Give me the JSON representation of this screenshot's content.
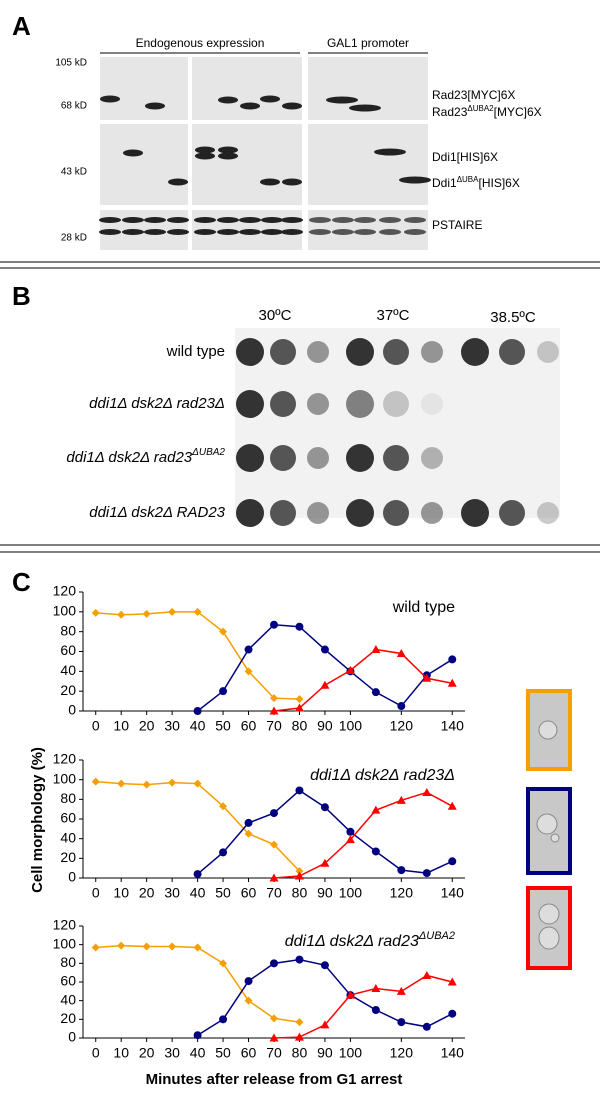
{
  "panel_a": {
    "label": "A",
    "headers": [
      "Endogenous expression",
      "GAL1 promoter"
    ],
    "markers": [
      "105 kD",
      "68 kD",
      "43 kD",
      "28 kD"
    ],
    "bands": [
      {
        "base": "Rad23[MYC]6X"
      },
      {
        "base": "Rad23",
        "sup": "ΔUBA2",
        "rest": "[MYC]6X"
      },
      {
        "base": "Ddi1[HIS]6X"
      },
      {
        "base": "Ddi1",
        "sup": "ΔUBA",
        "rest": "[HIS]6X"
      },
      {
        "base": "PSTAIRE"
      }
    ]
  },
  "panel_b": {
    "label": "B",
    "temperatures": [
      "30ºC",
      "37ºC",
      "38.5ºC"
    ],
    "strains": [
      {
        "base": "wild type"
      },
      {
        "base": "ddi1Δ dsk2Δ rad23Δ"
      },
      {
        "base": "ddi1Δ dsk2Δ rad23",
        "sup": "ΔUBA2"
      },
      {
        "base": "ddi1Δ dsk2Δ RAD23"
      }
    ]
  },
  "panel_c": {
    "label": "C"
  },
  "chart_data": [
    {
      "type": "line",
      "annotation": {
        "text": "wild type"
      },
      "x": [
        0,
        10,
        20,
        30,
        40,
        50,
        60,
        70,
        80,
        90,
        100,
        110,
        120,
        130,
        140
      ],
      "series": [
        {
          "color": "#f5a000",
          "marker": "diamond",
          "values": [
            99,
            97,
            98,
            100,
            100,
            80,
            40,
            13,
            12,
            null,
            null,
            null,
            null,
            null,
            null
          ]
        },
        {
          "color": "#000080",
          "marker": "circle",
          "values": [
            null,
            null,
            null,
            null,
            0,
            20,
            62,
            87,
            85,
            62,
            40,
            19,
            5,
            36,
            52
          ]
        },
        {
          "color": "#ff0000",
          "marker": "triangle",
          "values": [
            null,
            null,
            null,
            null,
            null,
            null,
            null,
            0,
            3,
            26,
            41,
            62,
            58,
            33,
            28
          ]
        }
      ],
      "xlim": [
        -5,
        145
      ],
      "xticks": [
        0,
        10,
        20,
        30,
        40,
        50,
        60,
        70,
        80,
        90,
        100,
        120,
        140
      ],
      "ylim": [
        0,
        120
      ],
      "yticks": [
        0,
        20,
        40,
        60,
        80,
        100,
        120
      ]
    },
    {
      "type": "line",
      "annotation": {
        "text": "ddi1Δ dsk2Δ rad23Δ"
      },
      "ylabel": "Cell morphology (%)",
      "x": [
        0,
        10,
        20,
        30,
        40,
        50,
        60,
        70,
        80,
        90,
        100,
        110,
        120,
        130,
        140
      ],
      "series": [
        {
          "color": "#f5a000",
          "marker": "diamond",
          "values": [
            98,
            96,
            95,
            97,
            96,
            73,
            45,
            34,
            7,
            null,
            null,
            null,
            null,
            null,
            null
          ]
        },
        {
          "color": "#000080",
          "marker": "circle",
          "values": [
            null,
            null,
            null,
            null,
            4,
            26,
            56,
            66,
            89,
            72,
            47,
            27,
            8,
            5,
            17
          ]
        },
        {
          "color": "#ff0000",
          "marker": "triangle",
          "values": [
            null,
            null,
            null,
            null,
            null,
            null,
            null,
            0,
            2,
            15,
            39,
            69,
            79,
            87,
            73
          ]
        }
      ],
      "xlim": [
        -5,
        145
      ],
      "xticks": [
        0,
        10,
        20,
        30,
        40,
        50,
        60,
        70,
        80,
        90,
        100,
        120,
        140
      ],
      "ylim": [
        0,
        120
      ],
      "yticks": [
        0,
        20,
        40,
        60,
        80,
        100,
        120
      ]
    },
    {
      "type": "line",
      "annotation": {
        "text": "ddi1Δ dsk2Δ rad23",
        "sup": "ΔUBA2"
      },
      "xlabel": "Minutes after release from G1 arrest",
      "x": [
        0,
        10,
        20,
        30,
        40,
        50,
        60,
        70,
        80,
        90,
        100,
        110,
        120,
        130,
        140
      ],
      "series": [
        {
          "color": "#f5a000",
          "marker": "diamond",
          "values": [
            97,
            99,
            98,
            98,
            97,
            80,
            40,
            21,
            17,
            null,
            null,
            null,
            null,
            null,
            null
          ]
        },
        {
          "color": "#000080",
          "marker": "circle",
          "values": [
            null,
            null,
            null,
            null,
            3,
            20,
            61,
            80,
            84,
            78,
            46,
            30,
            17,
            12,
            26
          ]
        },
        {
          "color": "#ff0000",
          "marker": "triangle",
          "values": [
            null,
            null,
            null,
            null,
            null,
            null,
            null,
            0,
            1,
            14,
            46,
            53,
            50,
            67,
            60
          ]
        }
      ],
      "xlim": [
        -5,
        145
      ],
      "xticks": [
        0,
        10,
        20,
        30,
        40,
        50,
        60,
        70,
        80,
        90,
        100,
        120,
        140
      ],
      "ylim": [
        0,
        120
      ],
      "yticks": [
        0,
        20,
        40,
        60,
        80,
        100,
        120
      ]
    }
  ]
}
